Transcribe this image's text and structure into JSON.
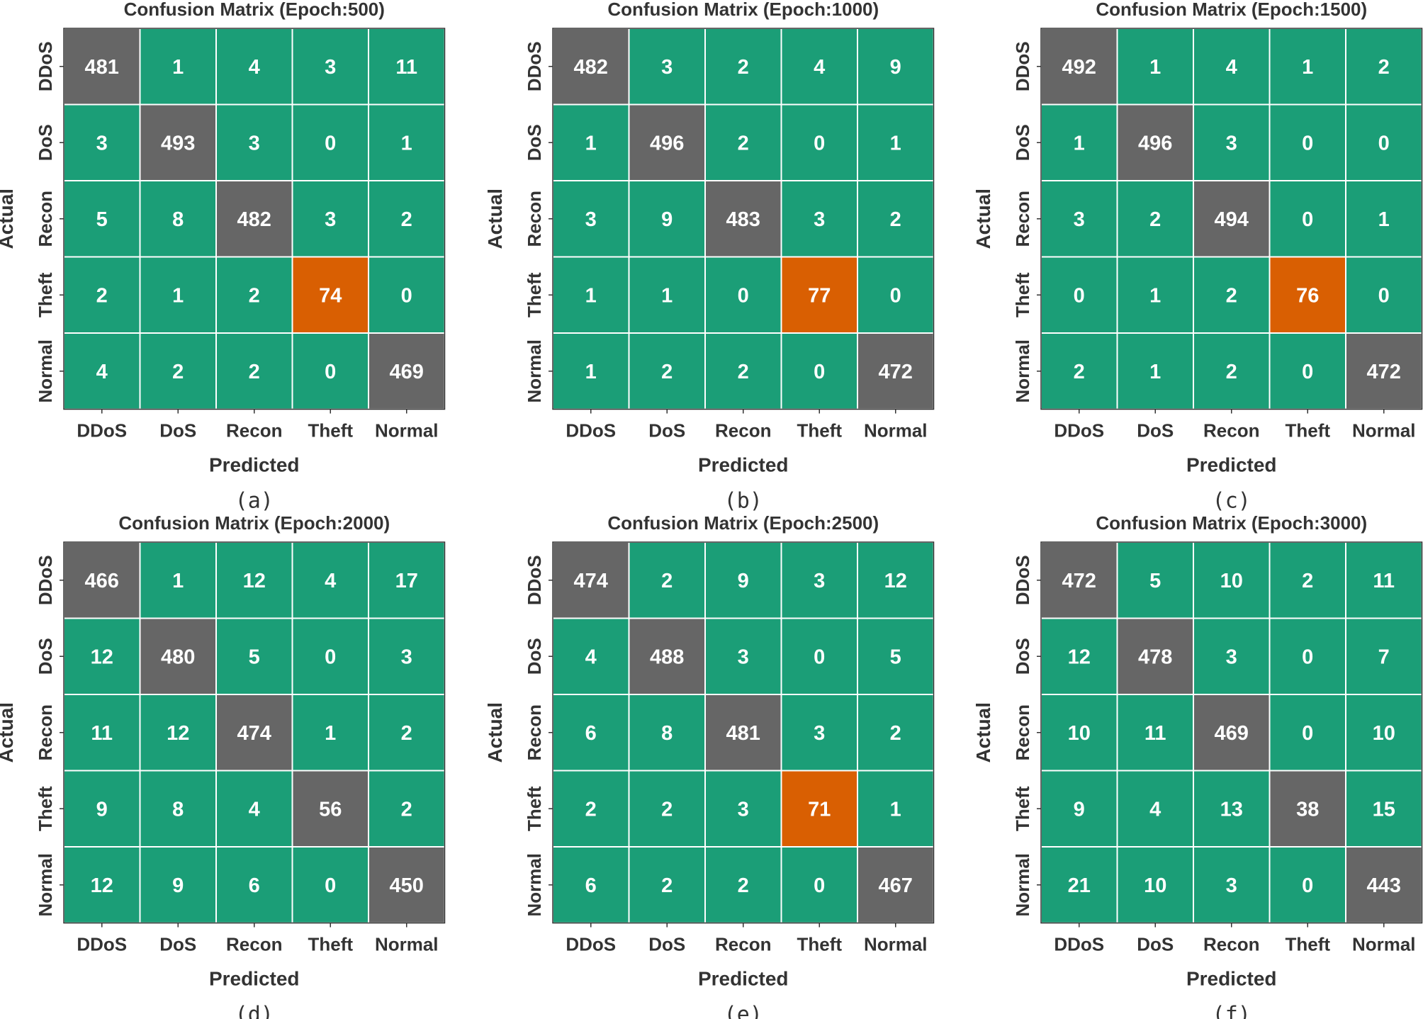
{
  "colors": {
    "diagonal": "#666666",
    "off_diagonal": "#1b9e77",
    "highlight": "#d95f02",
    "cell_text": "#ffffff",
    "grid_line": "#ffffff"
  },
  "chart_data": [
    {
      "type": "heatmap",
      "title": "Confusion Matrix (Epoch:500)",
      "caption": "(a)",
      "xlabel": "Predicted",
      "ylabel": "Actual",
      "x_categories": [
        "DDoS",
        "DoS",
        "Recon",
        "Theft",
        "Normal"
      ],
      "y_categories": [
        "DDoS",
        "DoS",
        "Recon",
        "Theft",
        "Normal"
      ],
      "values": [
        [
          481,
          1,
          4,
          3,
          11
        ],
        [
          3,
          493,
          3,
          0,
          1
        ],
        [
          5,
          8,
          482,
          3,
          2
        ],
        [
          2,
          1,
          2,
          74,
          0
        ],
        [
          4,
          2,
          2,
          0,
          469
        ]
      ],
      "highlight_cells": [
        [
          3,
          3
        ]
      ]
    },
    {
      "type": "heatmap",
      "title": "Confusion Matrix (Epoch:1000)",
      "caption": "(b)",
      "xlabel": "Predicted",
      "ylabel": "Actual",
      "x_categories": [
        "DDoS",
        "DoS",
        "Recon",
        "Theft",
        "Normal"
      ],
      "y_categories": [
        "DDoS",
        "DoS",
        "Recon",
        "Theft",
        "Normal"
      ],
      "values": [
        [
          482,
          3,
          2,
          4,
          9
        ],
        [
          1,
          496,
          2,
          0,
          1
        ],
        [
          3,
          9,
          483,
          3,
          2
        ],
        [
          1,
          1,
          0,
          77,
          0
        ],
        [
          1,
          2,
          2,
          0,
          472
        ]
      ],
      "highlight_cells": [
        [
          3,
          3
        ]
      ]
    },
    {
      "type": "heatmap",
      "title": "Confusion Matrix (Epoch:1500)",
      "caption": "(c)",
      "xlabel": "Predicted",
      "ylabel": "Actual",
      "x_categories": [
        "DDoS",
        "DoS",
        "Recon",
        "Theft",
        "Normal"
      ],
      "y_categories": [
        "DDoS",
        "DoS",
        "Recon",
        "Theft",
        "Normal"
      ],
      "values": [
        [
          492,
          1,
          4,
          1,
          2
        ],
        [
          1,
          496,
          3,
          0,
          0
        ],
        [
          3,
          2,
          494,
          0,
          1
        ],
        [
          0,
          1,
          2,
          76,
          0
        ],
        [
          2,
          1,
          2,
          0,
          472
        ]
      ],
      "highlight_cells": [
        [
          3,
          3
        ]
      ]
    },
    {
      "type": "heatmap",
      "title": "Confusion Matrix (Epoch:2000)",
      "caption": "(d)",
      "xlabel": "Predicted",
      "ylabel": "Actual",
      "x_categories": [
        "DDoS",
        "DoS",
        "Recon",
        "Theft",
        "Normal"
      ],
      "y_categories": [
        "DDoS",
        "DoS",
        "Recon",
        "Theft",
        "Normal"
      ],
      "values": [
        [
          466,
          1,
          12,
          4,
          17
        ],
        [
          12,
          480,
          5,
          0,
          3
        ],
        [
          11,
          12,
          474,
          1,
          2
        ],
        [
          9,
          8,
          4,
          56,
          2
        ],
        [
          12,
          9,
          6,
          0,
          450
        ]
      ],
      "highlight_cells": []
    },
    {
      "type": "heatmap",
      "title": "Confusion Matrix (Epoch:2500)",
      "caption": "(e)",
      "xlabel": "Predicted",
      "ylabel": "Actual",
      "x_categories": [
        "DDoS",
        "DoS",
        "Recon",
        "Theft",
        "Normal"
      ],
      "y_categories": [
        "DDoS",
        "DoS",
        "Recon",
        "Theft",
        "Normal"
      ],
      "values": [
        [
          474,
          2,
          9,
          3,
          12
        ],
        [
          4,
          488,
          3,
          0,
          5
        ],
        [
          6,
          8,
          481,
          3,
          2
        ],
        [
          2,
          2,
          3,
          71,
          1
        ],
        [
          6,
          2,
          2,
          0,
          467
        ]
      ],
      "highlight_cells": [
        [
          3,
          3
        ]
      ]
    },
    {
      "type": "heatmap",
      "title": "Confusion Matrix (Epoch:3000)",
      "caption": "(f)",
      "xlabel": "Predicted",
      "ylabel": "Actual",
      "x_categories": [
        "DDoS",
        "DoS",
        "Recon",
        "Theft",
        "Normal"
      ],
      "y_categories": [
        "DDoS",
        "DoS",
        "Recon",
        "Theft",
        "Normal"
      ],
      "values": [
        [
          472,
          5,
          10,
          2,
          11
        ],
        [
          12,
          478,
          3,
          0,
          7
        ],
        [
          10,
          11,
          469,
          0,
          10
        ],
        [
          9,
          4,
          13,
          38,
          15
        ],
        [
          21,
          10,
          3,
          0,
          443
        ]
      ],
      "highlight_cells": []
    }
  ]
}
